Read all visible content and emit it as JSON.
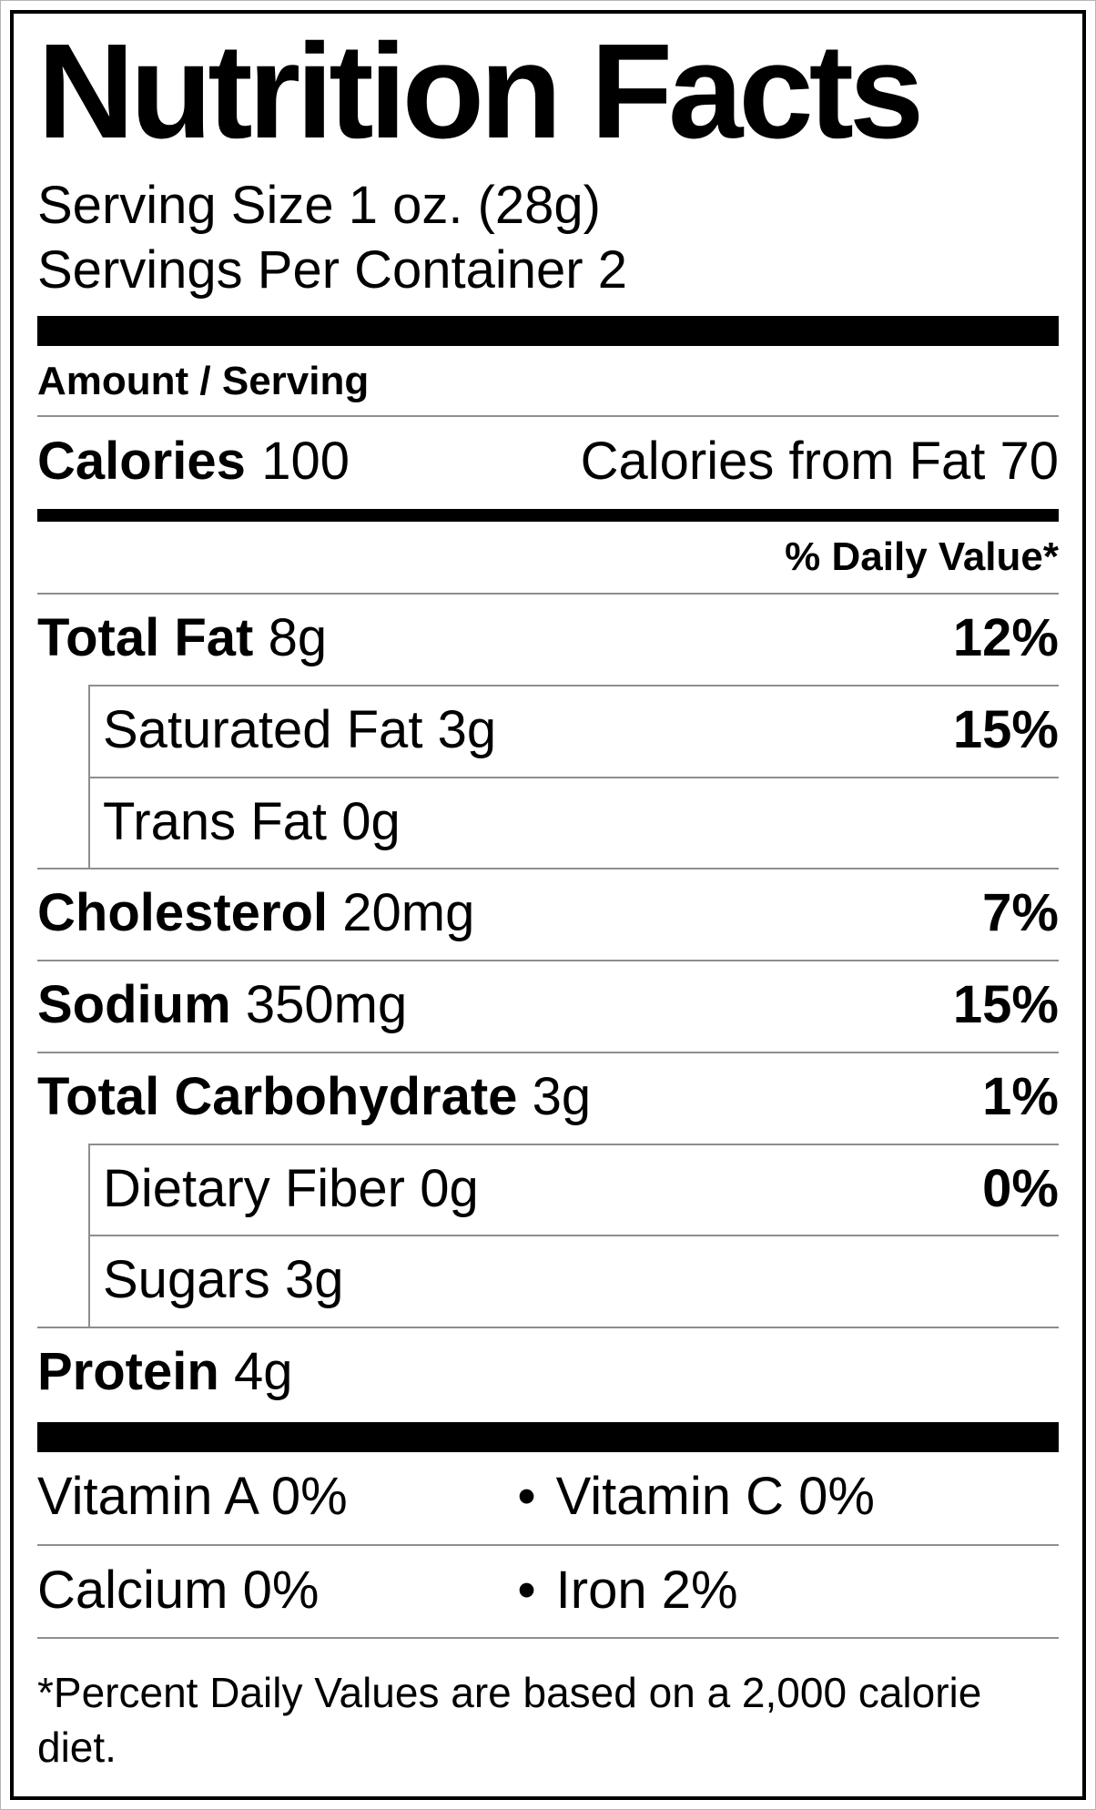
{
  "label": {
    "title": "Nutrition Facts",
    "serving_size": "Serving Size 1 oz. (28g)",
    "servings_per_container": "Servings Per Container 2",
    "amount_per_serving": "Amount / Serving",
    "calories_label": "Calories",
    "calories_value": "100",
    "calories_from_fat": "Calories from Fat 70",
    "daily_value_header": "% Daily Value*",
    "bullet": "•",
    "rows": [
      {
        "name": "Total Fat",
        "amount": "8g",
        "dv": "12%"
      },
      {
        "name": "Saturated Fat",
        "amount": "3g",
        "dv": "15%"
      },
      {
        "name": "Trans Fat",
        "amount": "0g",
        "dv": ""
      },
      {
        "name": "Cholesterol",
        "amount": "20mg",
        "dv": "7%"
      },
      {
        "name": "Sodium",
        "amount": "350mg",
        "dv": "15%"
      },
      {
        "name": "Total Carbohydrate",
        "amount": "3g",
        "dv": "1%"
      },
      {
        "name": "Dietary Fiber",
        "amount": "0g",
        "dv": "0%"
      },
      {
        "name": "Sugars",
        "amount": "3g",
        "dv": ""
      },
      {
        "name": "Protein",
        "amount": "4g",
        "dv": ""
      }
    ],
    "micronutrients": [
      {
        "left": "Vitamin A 0%",
        "right": "Vitamin C 0%"
      },
      {
        "left": "Calcium 0%",
        "right": "Iron 2%"
      }
    ],
    "footnote": "*Percent Daily Values are based on a 2,000 calorie diet."
  }
}
